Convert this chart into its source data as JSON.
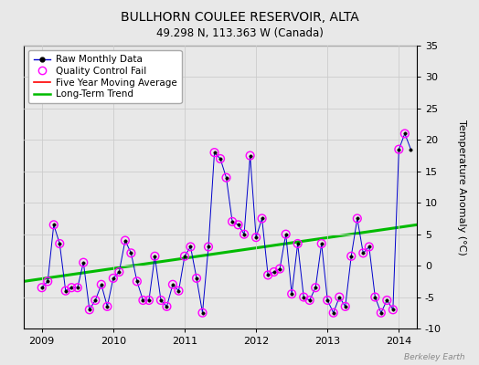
{
  "title": "BULLHORN COULEE RESERVOIR, ALTA",
  "subtitle": "49.298 N, 113.363 W (Canada)",
  "ylabel": "Temperature Anomaly (°C)",
  "watermark": "Berkeley Earth",
  "ylim": [
    -10,
    35
  ],
  "yticks": [
    -10,
    -5,
    0,
    5,
    10,
    15,
    20,
    25,
    30,
    35
  ],
  "xlim": [
    2008.75,
    2014.25
  ],
  "xticks": [
    2009,
    2010,
    2011,
    2012,
    2013,
    2014
  ],
  "background_color": "#e8e8e8",
  "raw_x": [
    2009.0,
    2009.083,
    2009.167,
    2009.25,
    2009.333,
    2009.417,
    2009.5,
    2009.583,
    2009.667,
    2009.75,
    2009.833,
    2009.917,
    2010.0,
    2010.083,
    2010.167,
    2010.25,
    2010.333,
    2010.417,
    2010.5,
    2010.583,
    2010.667,
    2010.75,
    2010.833,
    2010.917,
    2011.0,
    2011.083,
    2011.167,
    2011.25,
    2011.333,
    2011.417,
    2011.5,
    2011.583,
    2011.667,
    2011.75,
    2011.833,
    2011.917,
    2012.0,
    2012.083,
    2012.167,
    2012.25,
    2012.333,
    2012.417,
    2012.5,
    2012.583,
    2012.667,
    2012.75,
    2012.833,
    2012.917,
    2013.0,
    2013.083,
    2013.167,
    2013.25,
    2013.333,
    2013.417,
    2013.5,
    2013.583,
    2013.667,
    2013.75,
    2013.833,
    2013.917,
    2014.0,
    2014.083,
    2014.167
  ],
  "raw_y": [
    -3.5,
    -2.5,
    6.5,
    3.5,
    -4.0,
    -3.5,
    -3.5,
    0.5,
    -7.0,
    -5.5,
    -3.0,
    -6.5,
    -2.0,
    -1.0,
    4.0,
    2.0,
    -2.5,
    -5.5,
    -5.5,
    1.5,
    -5.5,
    -6.5,
    -3.0,
    -4.0,
    1.5,
    3.0,
    -2.0,
    -7.5,
    3.0,
    18.0,
    17.0,
    14.0,
    7.0,
    6.5,
    5.0,
    17.5,
    4.5,
    7.5,
    -1.5,
    -1.0,
    -0.5,
    5.0,
    -4.5,
    3.5,
    -5.0,
    -5.5,
    -3.5,
    3.5,
    -5.5,
    -7.5,
    -5.0,
    -6.5,
    1.5,
    7.5,
    2.0,
    3.0,
    -5.0,
    -7.5,
    -5.5,
    -7.0,
    18.5,
    21.0,
    18.5
  ],
  "qc_fail_indices": [
    0,
    1,
    2,
    3,
    4,
    5,
    6,
    7,
    8,
    9,
    10,
    11,
    12,
    13,
    14,
    15,
    16,
    17,
    18,
    19,
    20,
    21,
    22,
    23,
    24,
    25,
    26,
    27,
    28,
    29,
    30,
    31,
    32,
    33,
    34,
    35,
    36,
    37,
    38,
    39,
    40,
    41,
    42,
    43,
    44,
    45,
    46,
    47,
    48,
    49,
    50,
    51,
    52,
    53,
    54,
    55,
    56,
    57,
    58,
    59,
    60,
    61
  ],
  "trend_x": [
    2008.75,
    2014.25
  ],
  "trend_y": [
    -2.5,
    6.5
  ],
  "raw_color": "#0000cc",
  "raw_linewidth": 0.7,
  "qc_color": "#ff00ff",
  "trend_color": "#00bb00",
  "trend_linewidth": 2.2,
  "ma_color": "red",
  "grid_color": "#cccccc",
  "legend_fontsize": 7.5,
  "title_fontsize": 10,
  "subtitle_fontsize": 8.5
}
